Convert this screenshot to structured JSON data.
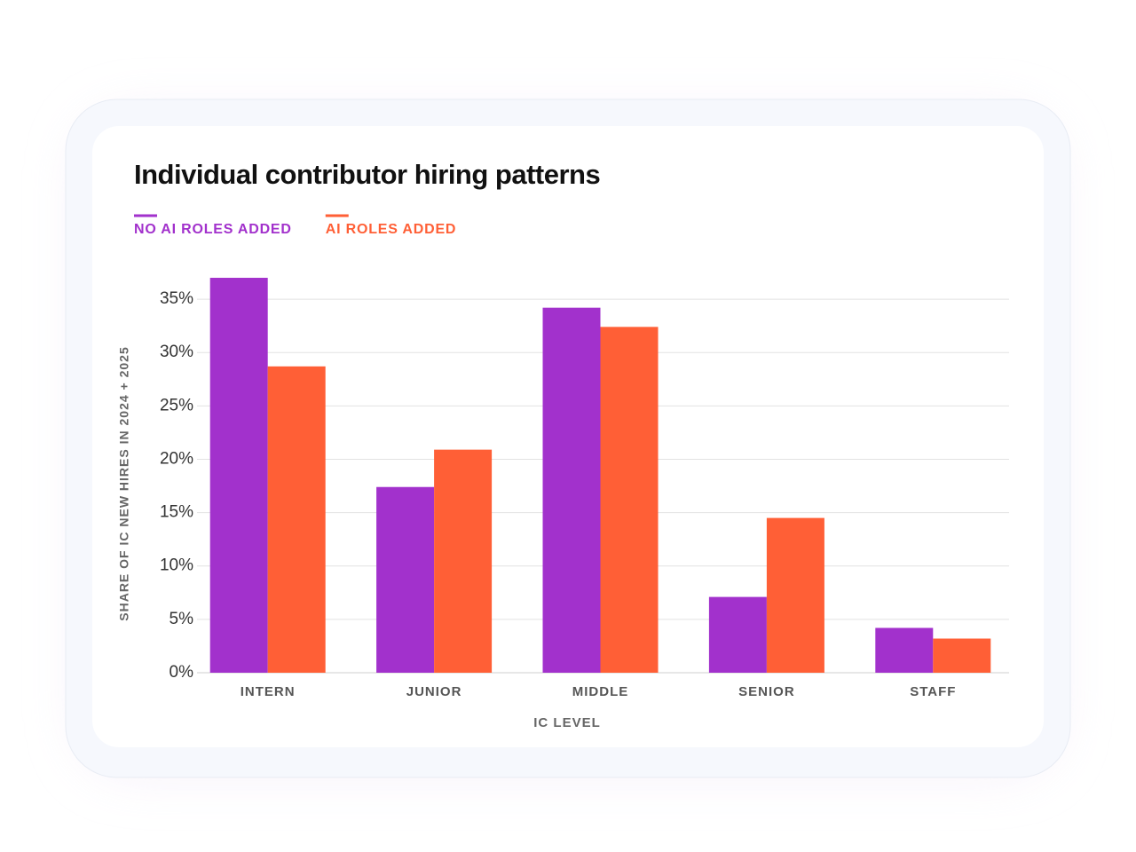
{
  "chart_data": {
    "type": "bar",
    "title": "Individual contributor hiring patterns",
    "x_label": "IC LEVEL",
    "y_label": "SHARE OF IC NEW HIRES IN 2024 + 2025",
    "categories": [
      "INTERN",
      "JUNIOR",
      "MIDDLE",
      "SENIOR",
      "STAFF"
    ],
    "series": [
      {
        "name": "NO AI ROLES ADDED",
        "color": "#a231cc",
        "values": [
          37.0,
          17.4,
          34.2,
          7.1,
          4.2
        ]
      },
      {
        "name": "AI ROLES ADDED",
        "color": "#ff5f36",
        "values": [
          28.7,
          20.9,
          32.4,
          14.5,
          3.2
        ]
      }
    ],
    "ylim": [
      0,
      37.5
    ],
    "yticks": [
      {
        "value": 0,
        "label": "0%"
      },
      {
        "value": 5,
        "label": "5%"
      },
      {
        "value": 10,
        "label": "10%"
      },
      {
        "value": 15,
        "label": "15%"
      },
      {
        "value": 20,
        "label": "20%"
      },
      {
        "value": 25,
        "label": "25%"
      },
      {
        "value": 30,
        "label": "30%"
      },
      {
        "value": 35,
        "label": "35%"
      }
    ],
    "grid": true
  }
}
